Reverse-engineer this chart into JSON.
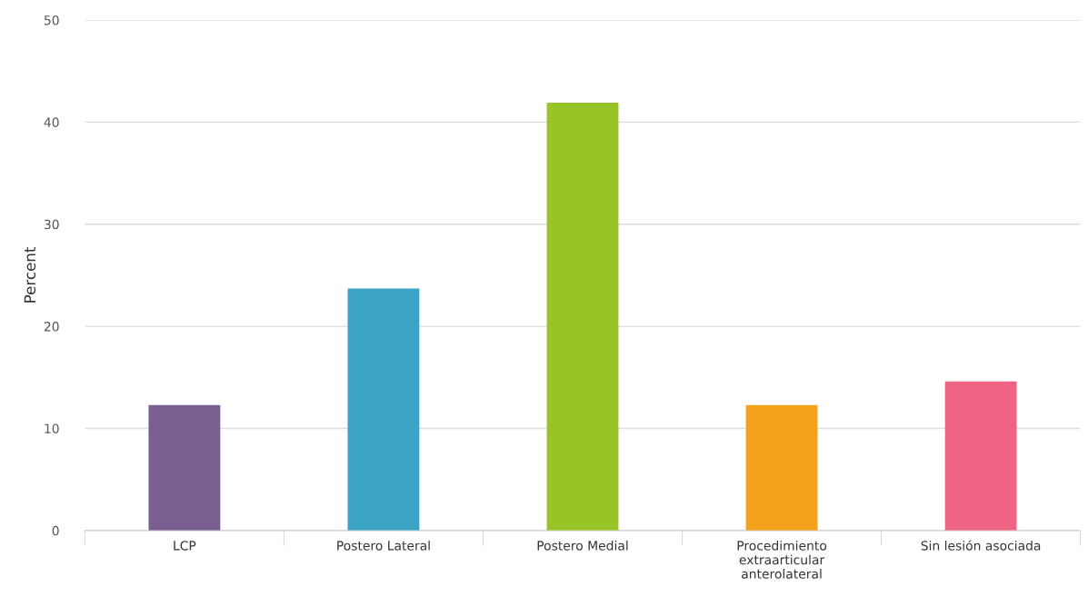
{
  "chart_data": {
    "type": "bar",
    "ylabel": "Percent",
    "categories": [
      "LCP",
      "Postero Lateral",
      "Postero Medial",
      "Procedimiento\nextraarticular\nanterolateral",
      "Sin lesión asociada"
    ],
    "values": [
      12.3,
      23.7,
      41.9,
      12.3,
      14.6
    ],
    "colors": [
      "#7b5e91",
      "#3ba3c3",
      "#99c427",
      "#f4a21c",
      "#ef6384"
    ],
    "ylim": [
      0,
      50
    ],
    "yticks": [
      0,
      10,
      20,
      30,
      40,
      50
    ],
    "grid": "y"
  }
}
